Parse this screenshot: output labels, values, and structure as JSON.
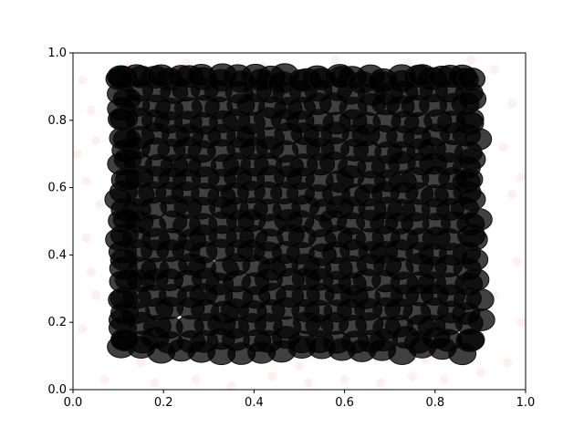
{
  "chart_data": {
    "type": "scatter",
    "title": "",
    "xlabel": "",
    "ylabel": "",
    "xlim": [
      0,
      1
    ],
    "ylim": [
      0,
      1
    ],
    "grid": false,
    "x_ticks": [
      "0.0",
      "0.2",
      "0.4",
      "0.6",
      "0.8",
      "1.0"
    ],
    "y_ticks": [
      "0.0",
      "0.2",
      "0.4",
      "0.6",
      "0.8",
      "1.0"
    ],
    "series": [
      {
        "role": "background-points",
        "color": "#ff9999",
        "opacity": 0.15,
        "points": [
          [
            0.02,
            0.92
          ],
          [
            0.04,
            0.83
          ],
          [
            0.03,
            0.62
          ],
          [
            0.05,
            0.74
          ],
          [
            0.06,
            0.55
          ],
          [
            0.03,
            0.45
          ],
          [
            0.04,
            0.35
          ],
          [
            0.05,
            0.28
          ],
          [
            0.07,
            0.03
          ],
          [
            0.02,
            0.18
          ],
          [
            0.09,
            0.88
          ],
          [
            0.12,
            0.96
          ],
          [
            0.18,
            0.02
          ],
          [
            0.27,
            0.03
          ],
          [
            0.35,
            0.01
          ],
          [
            0.44,
            0.04
          ],
          [
            0.52,
            0.02
          ],
          [
            0.6,
            0.03
          ],
          [
            0.68,
            0.02
          ],
          [
            0.75,
            0.04
          ],
          [
            0.82,
            0.03
          ],
          [
            0.9,
            0.05
          ],
          [
            0.93,
            0.28
          ],
          [
            0.97,
            0.58
          ],
          [
            0.98,
            0.38
          ],
          [
            0.95,
            0.72
          ],
          [
            0.97,
            0.85
          ],
          [
            0.99,
            0.2
          ],
          [
            0.96,
            0.08
          ],
          [
            0.93,
            0.95
          ],
          [
            0.25,
            0.97
          ],
          [
            0.42,
            0.96
          ],
          [
            0.58,
            0.98
          ],
          [
            0.74,
            0.97
          ],
          [
            0.88,
            0.98
          ],
          [
            0.15,
            0.08
          ],
          [
            0.5,
            0.07
          ],
          [
            0.78,
            0.09
          ],
          [
            0.01,
            0.7
          ],
          [
            0.99,
            0.63
          ]
        ]
      },
      {
        "role": "foreground-markers",
        "color": "#000000",
        "opacity": 0.75,
        "stroke": "#111111",
        "fill_region": {
          "x": [
            0.09,
            0.91
          ],
          "y": [
            0.09,
            0.95
          ]
        }
      }
    ]
  }
}
